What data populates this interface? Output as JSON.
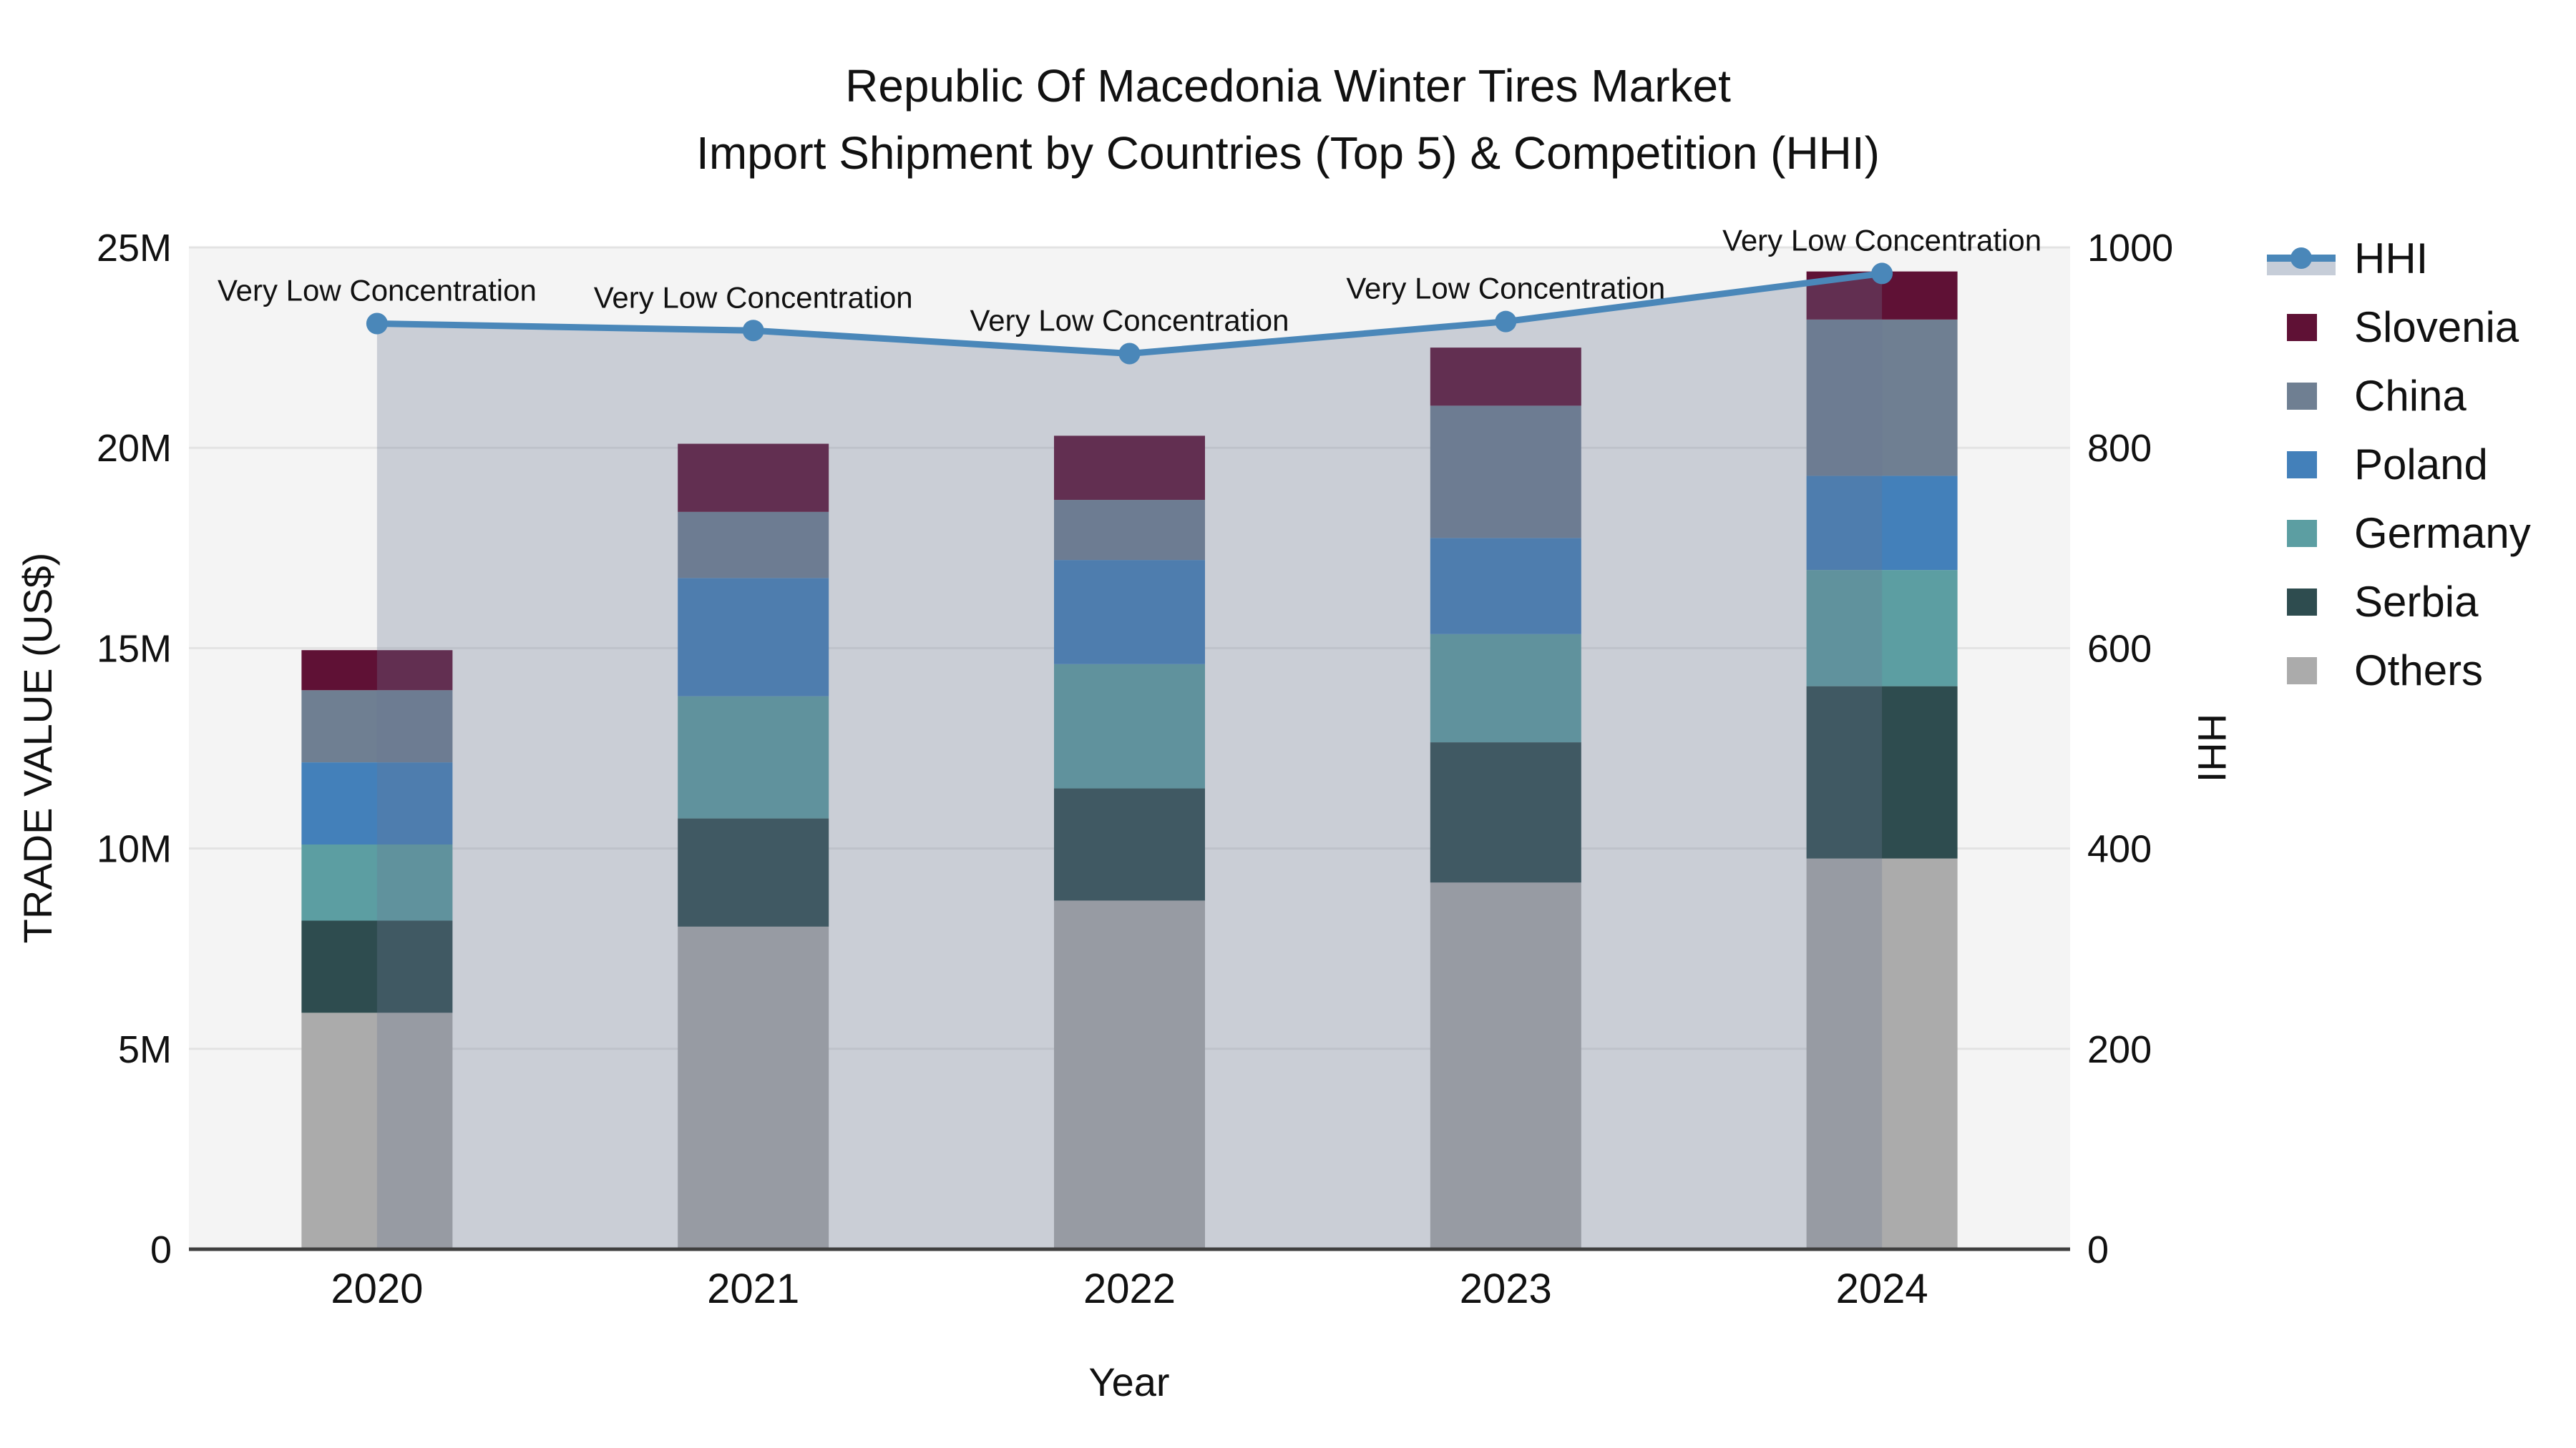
{
  "title": {
    "line1": "Republic Of Macedonia Winter Tires Market",
    "line2": "Import Shipment by Countries (Top 5) & Competition (HHI)"
  },
  "axes": {
    "y_left_title": "TRADE VALUE (US$)",
    "y_right_title": "HHI",
    "x_title": "Year",
    "y_left_ticks": [
      "0",
      "5M",
      "10M",
      "15M",
      "20M",
      "25M"
    ],
    "y_right_ticks": [
      "0",
      "200",
      "400",
      "600",
      "800",
      "1000"
    ]
  },
  "chart_data": {
    "type": "bar",
    "subtype": "stacked-bar-with-line",
    "categories": [
      "2020",
      "2021",
      "2022",
      "2023",
      "2024"
    ],
    "values_unit": "million US$",
    "ylim_left": [
      0,
      25000000
    ],
    "ylim_right": [
      0,
      1000
    ],
    "grid": "horizontal",
    "legend_position": "right",
    "series": [
      {
        "name": "Others",
        "color": "#ABABAB",
        "values": [
          5.9,
          8.05,
          8.7,
          9.15,
          9.75
        ]
      },
      {
        "name": "Serbia",
        "color": "#2E4C4F",
        "values": [
          2.3,
          2.7,
          2.8,
          3.5,
          4.3
        ]
      },
      {
        "name": "Germany",
        "color": "#5C9EA2",
        "values": [
          1.9,
          3.05,
          3.1,
          2.7,
          2.9
        ]
      },
      {
        "name": "Poland",
        "color": "#4380BA",
        "values": [
          2.05,
          2.95,
          2.6,
          2.4,
          2.35
        ]
      },
      {
        "name": "China",
        "color": "#6F7F92",
        "values": [
          1.8,
          1.65,
          1.5,
          3.3,
          3.9
        ]
      },
      {
        "name": "Slovenia",
        "color": "#5F1135",
        "values": [
          1.0,
          1.7,
          1.6,
          1.45,
          1.2
        ]
      }
    ],
    "line": {
      "name": "HHI",
      "color": "#4A87B9",
      "area_fill": "rgba(107,120,145,0.30)",
      "legend_fill_swatch": "#C6CDD8",
      "values": [
        924,
        917,
        894,
        926,
        974
      ],
      "annotations": [
        "Very Low Concentration",
        "Very Low Concentration",
        "Very Low Concentration",
        "Very Low Concentration",
        "Very Low Concentration"
      ]
    },
    "legend_order": [
      "HHI",
      "Slovenia",
      "China",
      "Poland",
      "Germany",
      "Serbia",
      "Others"
    ],
    "plot_bg": "#F4F4F4",
    "gridline_color": "#E3E3E3",
    "x_axis_line_color": "#3F3F3F"
  }
}
